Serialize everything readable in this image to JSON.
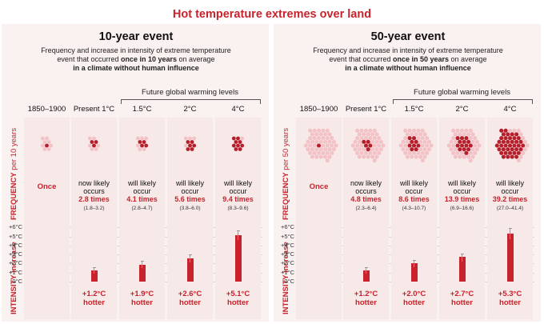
{
  "title": "Hot temperature extremes over land",
  "future_label": "Future global warming levels",
  "colors": {
    "accent": "#c8232c",
    "dot_light": "#f2c2c7",
    "dot_dark": "#b51e2a",
    "bar": "#c8232c"
  },
  "axis_label_frequency_bold": "FREQUENCY",
  "intensity_label": "INTENSITY increase",
  "intensity_ticks": [
    "+6°C",
    "+5°C",
    "+4°C",
    "+3°C",
    "+2°C",
    "+1°C",
    "0°C"
  ],
  "panels": [
    {
      "title": "10-year event",
      "desc_line1": "Frequency and increase in intensity of extreme temperature",
      "desc_line2a": "event that occurred ",
      "desc_line2b": "once in 10 years",
      "desc_line2c": " on average",
      "desc_line3": "in a climate without human influence",
      "freq_label_rest": " per 10 years",
      "columns": [
        {
          "period": "1850–1900",
          "once": "Once",
          "hotter": "",
          "intensity": 0,
          "err": [
            0,
            0
          ],
          "events": 1,
          "dots": 9
        },
        {
          "period": "Present 1°C",
          "verb1": "now likely",
          "verb2": "occurs",
          "mult": "2.8 times",
          "range": "(1.8–3.2)",
          "hotter": "+1.2°C",
          "hotter2": "hotter",
          "intensity": 1.2,
          "err": [
            0.9,
            1.6
          ],
          "events": 2.8,
          "dots": 9
        },
        {
          "period": "1.5°C",
          "verb1": "will likely",
          "verb2": "occur",
          "mult": "4.1 times",
          "range": "(2.8–4.7)",
          "hotter": "+1.9°C",
          "hotter2": "hotter",
          "intensity": 1.9,
          "err": [
            1.5,
            2.3
          ],
          "events": 4.1,
          "dots": 10
        },
        {
          "period": "2°C",
          "verb1": "will likely",
          "verb2": "occur",
          "mult": "5.6 times",
          "range": "(3.8–6.0)",
          "hotter": "+2.6°C",
          "hotter2": "hotter",
          "intensity": 2.6,
          "err": [
            2.1,
            3.0
          ],
          "events": 5.6,
          "dots": 10
        },
        {
          "period": "4°C",
          "verb1": "will likely",
          "verb2": "occur",
          "mult": "9.4 times",
          "range": "(8.3–9.6)",
          "hotter": "+5.1°C",
          "hotter2": "hotter",
          "intensity": 5.1,
          "err": [
            4.6,
            5.7
          ],
          "events": 9.4,
          "dots": 10
        }
      ]
    },
    {
      "title": "50-year event",
      "desc_line1": "Frequency and increase in intensity of extreme temperature",
      "desc_line2a": "event that occurred ",
      "desc_line2b": "once in 50 years",
      "desc_line2c": " on average",
      "desc_line3": "in a climate without human influence",
      "freq_label_rest": " per 50 years",
      "columns": [
        {
          "period": "1850–1900",
          "once": "Once",
          "hotter": "",
          "intensity": 0,
          "err": [
            0,
            0
          ],
          "events": 1,
          "dots": 50
        },
        {
          "period": "Present 1°C",
          "verb1": "now likely",
          "verb2": "occurs",
          "mult": "4.8 times",
          "range": "(2.3–6.4)",
          "hotter": "+1.2°C",
          "hotter2": "hotter",
          "intensity": 1.2,
          "err": [
            0.9,
            1.6
          ],
          "events": 4.8,
          "dots": 50
        },
        {
          "period": "1.5°C",
          "verb1": "will likely",
          "verb2": "occur",
          "mult": "8.6 times",
          "range": "(4.3–10.7)",
          "hotter": "+2.0°C",
          "hotter2": "hotter",
          "intensity": 2.0,
          "err": [
            1.6,
            2.4
          ],
          "events": 8.6,
          "dots": 50
        },
        {
          "period": "2°C",
          "verb1": "will likely",
          "verb2": "occur",
          "mult": "13.9 times",
          "range": "(6.9–16.6)",
          "hotter": "+2.7°C",
          "hotter2": "hotter",
          "intensity": 2.7,
          "err": [
            2.2,
            3.1
          ],
          "events": 13.9,
          "dots": 50
        },
        {
          "period": "4°C",
          "verb1": "will likely",
          "verb2": "occur",
          "mult": "39.2 times",
          "range": "(27.0–41.4)",
          "hotter": "+5.3°C",
          "hotter2": "hotter",
          "intensity": 5.3,
          "err": [
            4.7,
            5.9
          ],
          "events": 39.2,
          "dots": 50
        }
      ]
    }
  ]
}
